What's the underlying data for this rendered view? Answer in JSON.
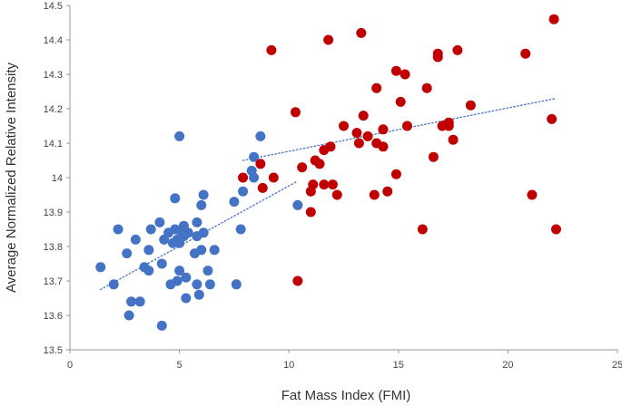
{
  "chart_data": {
    "type": "scatter",
    "title": "",
    "xlabel": "Fat Mass Index (FMI)",
    "ylabel": "Average Normalized Relative Intensity",
    "xlim": [
      0,
      25
    ],
    "ylim": [
      13.5,
      14.5
    ],
    "xticks": [
      0,
      5,
      10,
      15,
      20,
      25
    ],
    "yticks": [
      13.5,
      13.6,
      13.7,
      13.8,
      13.9,
      14,
      14.1,
      14.2,
      14.3,
      14.4,
      14.5
    ],
    "xtick_labels": [
      "0",
      "5",
      "10",
      "15",
      "20",
      "25"
    ],
    "ytick_labels": [
      "13.5",
      "13.6",
      "13.7",
      "13.8",
      "13.9",
      "14",
      "14.1",
      "14.2",
      "14.3",
      "14.4",
      "14.5"
    ],
    "grid": false,
    "legend": "none",
    "series": [
      {
        "color": "#4472C4",
        "points": [
          [
            1.4,
            13.74
          ],
          [
            2.0,
            13.69
          ],
          [
            2.2,
            13.85
          ],
          [
            2.6,
            13.78
          ],
          [
            2.7,
            13.6
          ],
          [
            2.8,
            13.64
          ],
          [
            3.0,
            13.82
          ],
          [
            3.2,
            13.64
          ],
          [
            3.4,
            13.74
          ],
          [
            3.6,
            13.73
          ],
          [
            3.6,
            13.79
          ],
          [
            3.7,
            13.85
          ],
          [
            4.1,
            13.87
          ],
          [
            4.2,
            13.57
          ],
          [
            4.2,
            13.75
          ],
          [
            4.3,
            13.82
          ],
          [
            4.5,
            13.84
          ],
          [
            4.6,
            13.69
          ],
          [
            4.7,
            13.81
          ],
          [
            4.8,
            13.85
          ],
          [
            4.8,
            13.94
          ],
          [
            4.9,
            13.7
          ],
          [
            4.9,
            13.82
          ],
          [
            5.0,
            13.73
          ],
          [
            5.0,
            13.81
          ],
          [
            5.0,
            14.12
          ],
          [
            5.1,
            13.84
          ],
          [
            5.2,
            13.83
          ],
          [
            5.2,
            13.86
          ],
          [
            5.3,
            13.65
          ],
          [
            5.3,
            13.71
          ],
          [
            5.4,
            13.84
          ],
          [
            5.7,
            13.78
          ],
          [
            5.8,
            13.69
          ],
          [
            5.8,
            13.83
          ],
          [
            5.8,
            13.87
          ],
          [
            5.9,
            13.66
          ],
          [
            6.0,
            13.79
          ],
          [
            6.0,
            13.92
          ],
          [
            6.1,
            13.84
          ],
          [
            6.1,
            13.95
          ],
          [
            6.3,
            13.73
          ],
          [
            6.4,
            13.69
          ],
          [
            6.6,
            13.79
          ],
          [
            7.5,
            13.93
          ],
          [
            7.6,
            13.69
          ],
          [
            7.8,
            13.85
          ],
          [
            7.9,
            13.96
          ],
          [
            8.3,
            14.02
          ],
          [
            8.4,
            14.06
          ],
          [
            8.4,
            14.0
          ],
          [
            8.7,
            14.12
          ],
          [
            10.4,
            13.92
          ]
        ]
      },
      {
        "color": "#C00000",
        "points": [
          [
            7.9,
            14.0
          ],
          [
            8.7,
            14.04
          ],
          [
            8.8,
            13.97
          ],
          [
            9.2,
            14.37
          ],
          [
            9.3,
            14.0
          ],
          [
            10.3,
            14.19
          ],
          [
            10.4,
            13.7
          ],
          [
            10.6,
            14.03
          ],
          [
            11.0,
            13.9
          ],
          [
            11.0,
            13.96
          ],
          [
            11.1,
            13.98
          ],
          [
            11.2,
            14.05
          ],
          [
            11.4,
            14.04
          ],
          [
            11.6,
            13.98
          ],
          [
            11.6,
            14.08
          ],
          [
            11.8,
            14.4
          ],
          [
            11.9,
            14.09
          ],
          [
            12.0,
            13.98
          ],
          [
            12.2,
            13.95
          ],
          [
            12.5,
            14.15
          ],
          [
            13.1,
            14.13
          ],
          [
            13.2,
            14.1
          ],
          [
            13.3,
            14.42
          ],
          [
            13.4,
            14.18
          ],
          [
            13.6,
            14.12
          ],
          [
            13.9,
            13.95
          ],
          [
            14.0,
            14.26
          ],
          [
            14.0,
            14.1
          ],
          [
            14.3,
            14.09
          ],
          [
            14.3,
            14.14
          ],
          [
            14.5,
            13.96
          ],
          [
            14.9,
            14.01
          ],
          [
            14.9,
            14.31
          ],
          [
            15.1,
            14.22
          ],
          [
            15.3,
            14.3
          ],
          [
            15.4,
            14.15
          ],
          [
            16.1,
            13.85
          ],
          [
            16.3,
            14.26
          ],
          [
            16.6,
            14.06
          ],
          [
            16.8,
            14.36
          ],
          [
            16.8,
            14.35
          ],
          [
            17.0,
            14.15
          ],
          [
            17.3,
            14.15
          ],
          [
            17.3,
            14.16
          ],
          [
            17.5,
            14.11
          ],
          [
            17.7,
            14.37
          ],
          [
            18.3,
            14.21
          ],
          [
            20.8,
            14.36
          ],
          [
            21.1,
            13.95
          ],
          [
            22.0,
            14.17
          ],
          [
            22.1,
            14.46
          ],
          [
            22.2,
            13.85
          ]
        ]
      }
    ],
    "trendlines": [
      {
        "color": "#4472C4",
        "style": "dotted",
        "from": [
          1.4,
          13.675
        ],
        "to": [
          10.4,
          13.99
        ]
      },
      {
        "color": "#4472C4",
        "style": "dotted",
        "from": [
          7.9,
          14.05
        ],
        "to": [
          22.2,
          14.23
        ]
      }
    ]
  }
}
